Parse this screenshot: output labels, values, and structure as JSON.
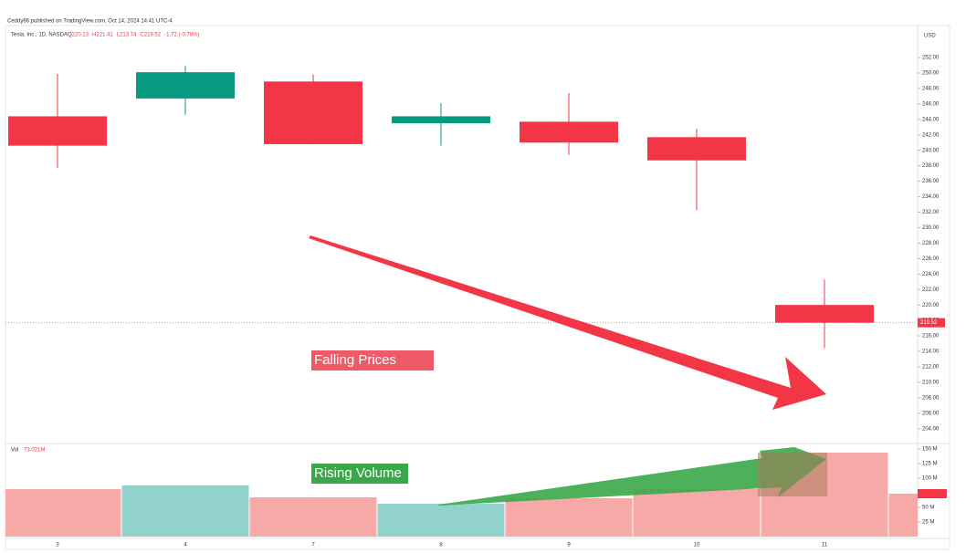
{
  "chart_data": {
    "type": "candlestick",
    "credit": "Ceddy86 published on TradingView.com, Oct 14, 2024 14:41 UTC-4",
    "title": "Tesla, Inc., 1D, NASDAQ",
    "ohlc_text": [
      "O220.13",
      "H221.41",
      "L213.74",
      "C219.52",
      "-1.72 (-0.78%)"
    ],
    "currency": "USD",
    "last_price_label": "219.52",
    "volume_title": "Vol",
    "volume_text": "73.021M",
    "annotations": [
      "Falling Prices",
      "Rising Volume"
    ],
    "categories": [
      "3",
      "4",
      "7",
      "8",
      "9",
      "10",
      "11",
      null
    ],
    "open": [
      244.4,
      246.7,
      248.9,
      243.5,
      243.7,
      241.7,
      220.0,
      null
    ],
    "high": [
      249.9,
      250.9,
      249.8,
      246.1,
      247.4,
      242.8,
      223.3,
      null
    ],
    "low": [
      237.7,
      244.6,
      240.8,
      240.6,
      239.4,
      232.3,
      214.4,
      null
    ],
    "close": [
      240.6,
      250.1,
      240.8,
      244.4,
      241.0,
      238.7,
      217.7,
      null
    ],
    "up_color": "#089981",
    "down_color": "#f23645",
    "volume": [
      81.2,
      87.5,
      67.2,
      56.2,
      65.6,
      81.2,
      143.8,
      73.4
    ],
    "volume_up_color": "#92d2cc",
    "volume_down_color": "#f7a9a7",
    "ylim": [
      202.2,
      255.9
    ],
    "yticks": [
      {
        "value": 204,
        "label": "204.00"
      },
      {
        "value": 206,
        "label": "206.00"
      },
      {
        "value": 208,
        "label": "208.00"
      },
      {
        "value": 210,
        "label": "210.00"
      },
      {
        "value": 212,
        "label": "212.00"
      },
      {
        "value": 214,
        "label": "214.00"
      },
      {
        "value": 216,
        "label": "216.00"
      },
      {
        "value": 218,
        "label": "218.00"
      },
      {
        "value": 220,
        "label": "220.00"
      },
      {
        "value": 222,
        "label": "222.00"
      },
      {
        "value": 224,
        "label": "224.00"
      },
      {
        "value": 226,
        "label": "226.00"
      },
      {
        "value": 228,
        "label": "228.00"
      },
      {
        "value": 230,
        "label": "230.00"
      },
      {
        "value": 232,
        "label": "232.00"
      },
      {
        "value": 234,
        "label": "234.00"
      },
      {
        "value": 236,
        "label": "236.00"
      },
      {
        "value": 238,
        "label": "238.00"
      },
      {
        "value": 240,
        "label": "240.00"
      },
      {
        "value": 242,
        "label": "242.00"
      },
      {
        "value": 244,
        "label": "244.00"
      },
      {
        "value": 246,
        "label": "246.00"
      },
      {
        "value": 248,
        "label": "248.00"
      },
      {
        "value": 250,
        "label": "250.00"
      },
      {
        "value": 252,
        "label": "252.00"
      }
    ],
    "volume_ylim": [
      0,
      156.25
    ],
    "volume_yticks": [
      {
        "value": 25,
        "label": "25 M"
      },
      {
        "value": 50,
        "label": "50 M"
      },
      {
        "value": 100,
        "label": "100 M"
      },
      {
        "value": 125,
        "label": "125 M"
      },
      {
        "value": 150,
        "label": "150 M"
      }
    ]
  }
}
